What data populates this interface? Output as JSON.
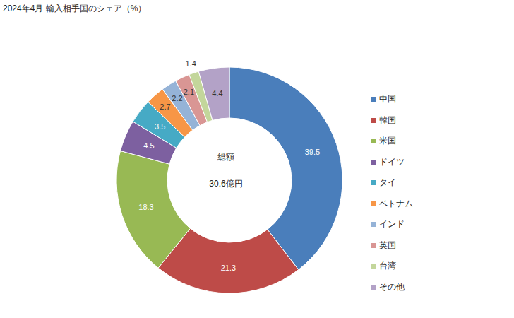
{
  "chart_data": {
    "type": "pie",
    "title": "2024年4月 輸入相手国のシェア（%）",
    "categories": [
      "中国",
      "韓国",
      "米国",
      "ドイツ",
      "タイ",
      "ベトナム",
      "インド",
      "英国",
      "台湾",
      "その他"
    ],
    "values": [
      39.5,
      21.3,
      18.3,
      4.5,
      3.5,
      2.7,
      2.2,
      2.1,
      1.4,
      4.4
    ],
    "colors": [
      "#4a7ebb",
      "#be4b48",
      "#98b954",
      "#7d60a0",
      "#46aac5",
      "#f79646",
      "#95b3d7",
      "#d99694",
      "#c3d69b",
      "#b3a2c7"
    ],
    "data_labels": true,
    "legend": "right",
    "annotations": [
      "総額",
      "30.6億円"
    ]
  }
}
